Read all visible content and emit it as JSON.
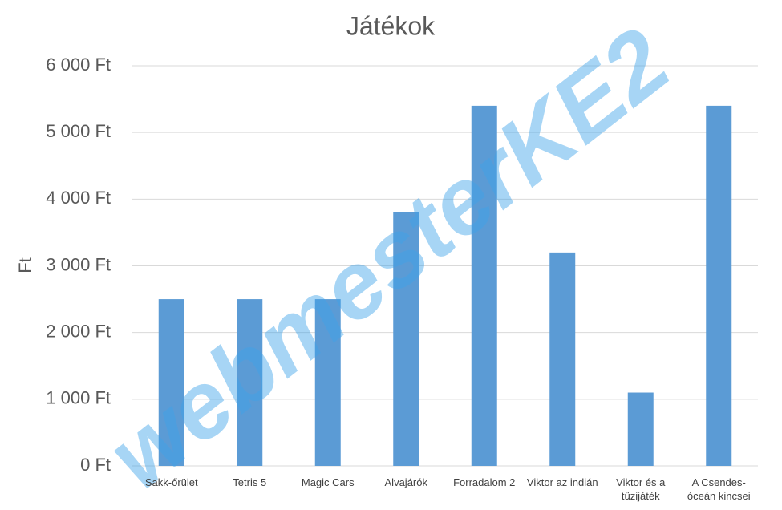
{
  "chart_data": {
    "type": "bar",
    "title": "Játékok",
    "y_label": "Ft",
    "categories": [
      "Sakk-őrület",
      "Tetris 5",
      "Magic Cars",
      "Alvajárók",
      "Forradalom 2",
      "Viktor az indián",
      "Viktor és a tüzijáték",
      "A Csendes-óceán kincsei"
    ],
    "values": [
      2500,
      2500,
      2500,
      3800,
      5400,
      3200,
      1100,
      5400
    ],
    "color": "#5b9bd5",
    "ylim": [
      0,
      6000
    ],
    "yticks": [
      {
        "value": 0,
        "label": "0 Ft"
      },
      {
        "value": 1000,
        "label": "1 000 Ft"
      },
      {
        "value": 2000,
        "label": "2 000 Ft"
      },
      {
        "value": 3000,
        "label": "3 000 Ft"
      },
      {
        "value": 4000,
        "label": "4 000 Ft"
      },
      {
        "value": 5000,
        "label": "5 000 Ft"
      },
      {
        "value": 6000,
        "label": "6 000 Ft"
      }
    ],
    "grid": true,
    "watermark": "webmesterKE2"
  }
}
